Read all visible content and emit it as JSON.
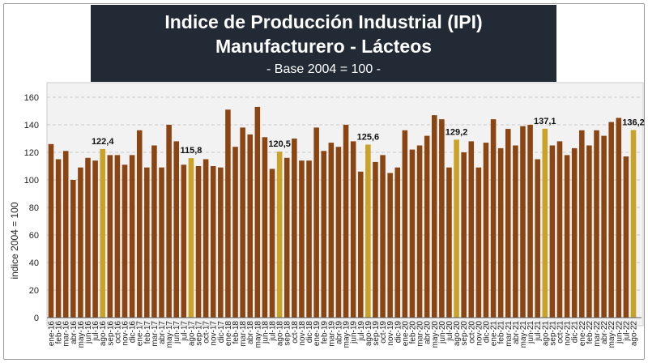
{
  "title": "Indice de Producción Industrial (IPI) Manufacturero - Lácteos",
  "subtitle": "- Base 2004 = 100 -",
  "colors": {
    "bar": "#8b4513",
    "highlight": "#c9a227",
    "title_bg": "#222a35",
    "plot_bg": "#f2f2f2"
  },
  "chart_data": {
    "type": "bar",
    "title": "Indice de Producción Industrial (IPI) Manufacturero - Lácteos",
    "subtitle": "- Base 2004 = 100 -",
    "xlabel": "",
    "ylabel": "indice 2004 = 100",
    "ylim": [
      0,
      160
    ],
    "yticks": [
      0,
      20,
      40,
      60,
      80,
      100,
      120,
      140,
      160
    ],
    "grid": true,
    "categories": [
      "ene-16",
      "feb-16",
      "mar-16",
      "abr-16",
      "may-16",
      "jun-16",
      "jul-16",
      "ago-16",
      "sep-16",
      "oct-16",
      "nov-16",
      "dic-16",
      "ene-17",
      "feb-17",
      "mar-17",
      "abr-17",
      "may-17",
      "jun-17",
      "jul-17",
      "ago-17",
      "sep-17",
      "oct-17",
      "nov-17",
      "dic-17",
      "ene-18",
      "feb-18",
      "mar-18",
      "abr-18",
      "may-18",
      "jun-18",
      "jul-18",
      "ago-18",
      "sep-18",
      "oct-18",
      "nov-18",
      "dic-18",
      "ene-19",
      "feb-19",
      "mar-19",
      "abr-19",
      "may-19",
      "jun-19",
      "jul-19",
      "ago-19",
      "sep-19",
      "oct-19",
      "nov-19",
      "dic-19",
      "ene-20",
      "feb-20",
      "mar-20",
      "abr-20",
      "may-20",
      "jun-20",
      "jul-20",
      "ago-20",
      "sep-20",
      "oct-20",
      "nov-20",
      "dic-20",
      "ene-21",
      "feb-21",
      "mar-21",
      "abr-21",
      "may-21",
      "jun-21",
      "jul-21",
      "ago-21",
      "sep-21",
      "oct-21",
      "nov-21",
      "dic-21",
      "ene-22",
      "feb-22",
      "mar-22",
      "abr-22",
      "may-22",
      "jun-22",
      "jul-22",
      "ago-22"
    ],
    "values": [
      126,
      115,
      121,
      100,
      109,
      116,
      114,
      122.4,
      118,
      118,
      111,
      118,
      136,
      109,
      125,
      109,
      140,
      128,
      111,
      115.8,
      110,
      115,
      110,
      109,
      151,
      124,
      138,
      133,
      153,
      131,
      108,
      120.5,
      116,
      130,
      114,
      114,
      138,
      121,
      127,
      124,
      140,
      128,
      106,
      125.6,
      113,
      118,
      105,
      109,
      136,
      122,
      125,
      132,
      147,
      144,
      109,
      129.2,
      120,
      128,
      109,
      127,
      144,
      123,
      137,
      125,
      139,
      140,
      115,
      137.1,
      125,
      128,
      118,
      123,
      136,
      125,
      136,
      132,
      142,
      145,
      117,
      136.2
    ],
    "highlight_indices": [
      7,
      19,
      31,
      43,
      55,
      67,
      79
    ],
    "data_labels": [
      {
        "index": 7,
        "text": "122,4"
      },
      {
        "index": 19,
        "text": "115,8"
      },
      {
        "index": 31,
        "text": "120,5"
      },
      {
        "index": 43,
        "text": "125,6"
      },
      {
        "index": 55,
        "text": "129,2"
      },
      {
        "index": 67,
        "text": "137,1"
      },
      {
        "index": 79,
        "text": "136,2"
      }
    ]
  }
}
